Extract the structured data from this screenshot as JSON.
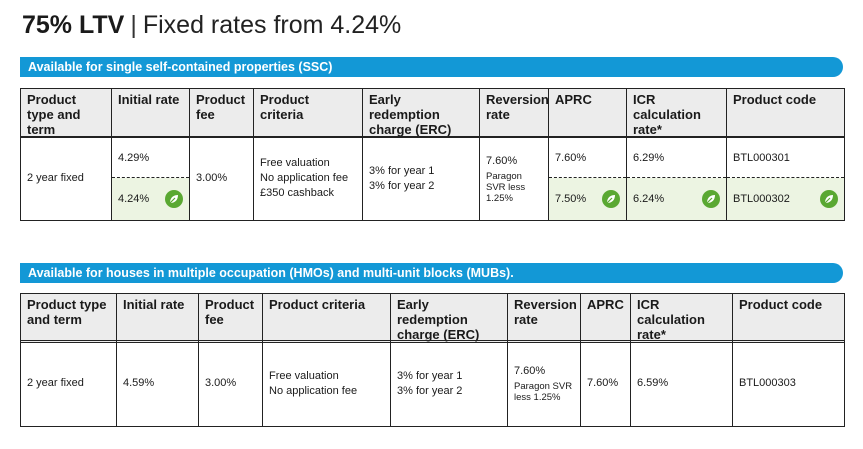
{
  "header": {
    "ltv": "75% LTV",
    "separator": "|",
    "subtitle": "Fixed rates from 4.24%"
  },
  "colors": {
    "band": "#1398d6",
    "header_bg": "#ececec",
    "green_row": "#ecf4e2",
    "leaf": "#5aa832"
  },
  "ssc": {
    "band_title": "Available for single self-contained properties (SSC)",
    "columns": [
      "Product type and term",
      "Initial rate",
      "Product fee",
      "Product criteria",
      "Early redemption charge (ERC)",
      "Reversion rate",
      "APRC",
      "ICR calculation rate*",
      "Product code"
    ],
    "row": {
      "product_type": "2 year fixed",
      "initial_rate_1": "4.29%",
      "initial_rate_2": "4.24%",
      "fee": "3.00%",
      "criteria": [
        "Free valuation",
        "No application fee",
        "£350 cashback"
      ],
      "erc": [
        "3% for year 1",
        "3% for year 2"
      ],
      "reversion_rate": "7.60%",
      "reversion_note": "Paragon SVR less 1.25%",
      "aprc_1": "7.60%",
      "aprc_2": "7.50%",
      "icr_1": "6.29%",
      "icr_2": "6.24%",
      "code_1": "BTL000301",
      "code_2": "BTL000302"
    }
  },
  "hmo": {
    "band_title": "Available for houses in multiple occupation (HMOs) and multi-unit blocks (MUBs).",
    "columns": [
      "Product type and term",
      "Initial rate",
      "Product fee",
      "Product criteria",
      "Early redemption charge (ERC)",
      "Reversion rate",
      "APRC",
      "ICR calculation rate*",
      "Product code"
    ],
    "row": {
      "product_type": "2 year fixed",
      "initial_rate": "4.59%",
      "fee": "3.00%",
      "criteria": [
        "Free valuation",
        "No application fee"
      ],
      "erc": [
        "3% for year 1",
        "3% for year 2"
      ],
      "reversion_rate": "7.60%",
      "reversion_note": "Paragon SVR less 1.25%",
      "aprc": "7.60%",
      "icr": "6.59%",
      "code": "BTL000303"
    }
  }
}
